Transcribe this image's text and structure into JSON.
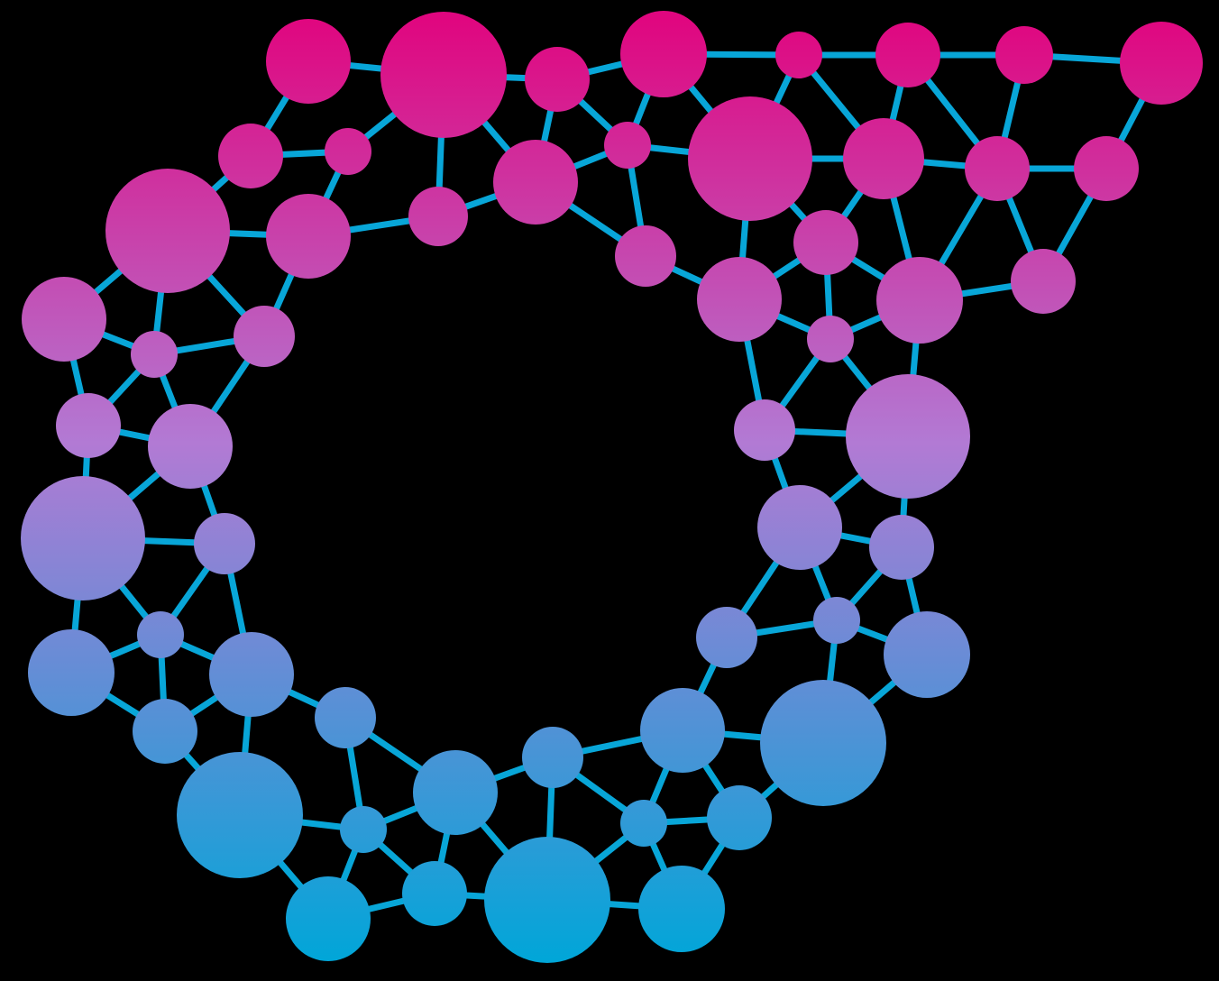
{
  "background_color": "#000000",
  "link_color": "#08A6D8",
  "gradient": {
    "top_color": "#E0067F",
    "middle_color": "#B27AD4",
    "bottom_color": "#00A6D8"
  }
}
